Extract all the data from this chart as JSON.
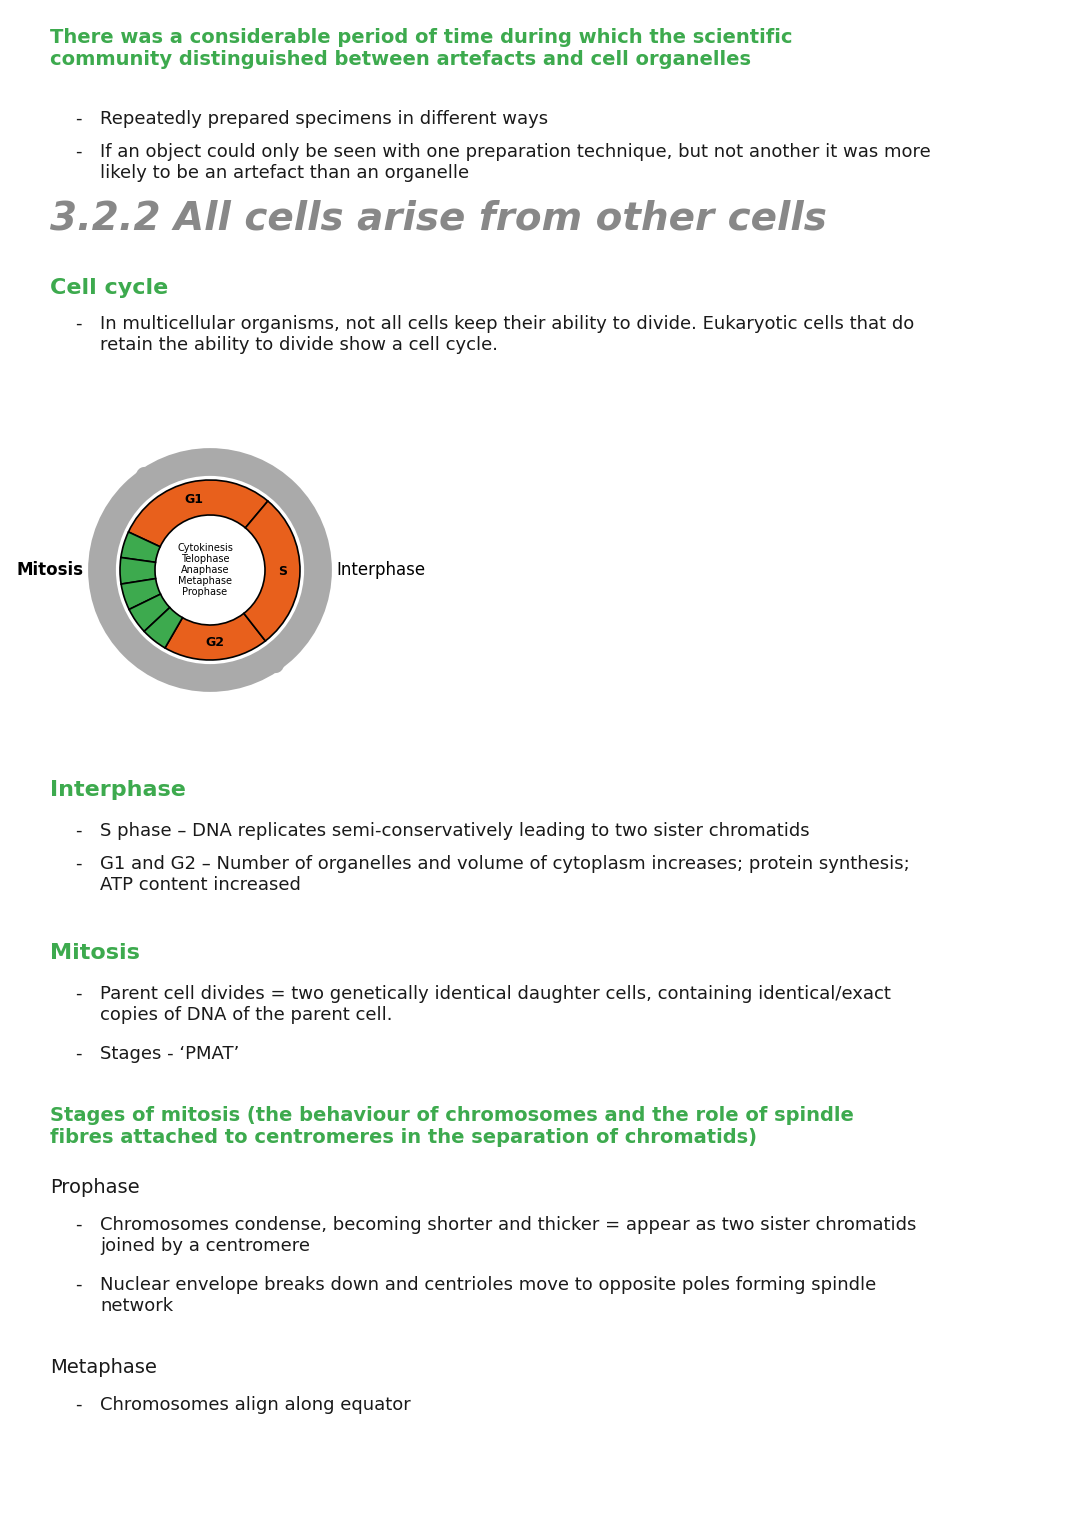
{
  "bg_color": "#ffffff",
  "green_heading_color": "#3daa4e",
  "black_text_color": "#1a1a1a",
  "orange_color": "#E8601C",
  "dark_green_slice": "#3daa4e",
  "gray_circle_color": "#AAAAAA",
  "section1_heading": "There was a considerable period of time during which the scientific\ncommunity distinguished between artefacts and cell organelles",
  "section1_bullets": [
    "Repeatedly prepared specimens in different ways",
    "If an object could only be seen with one preparation technique, but not another it was more\nlikely to be an artefact than an organelle"
  ],
  "section2_title": "3.2.2 All cells arise from other cells",
  "section3_heading": "Cell cycle",
  "section3_bullet": "In multicellular organisms, not all cells keep their ability to divide. Eukaryotic cells that do\nretain the ability to divide show a cell cycle.",
  "diagram_labels": {
    "G1": "G1",
    "G2": "G2",
    "S": "S",
    "mitosis_label": "Mitosis",
    "interphase_label": "Interphase",
    "inner_labels": [
      "Cytokinesis",
      "Telophase",
      "Anaphase",
      "Metaphase",
      "Prophase"
    ]
  },
  "section4_heading": "Interphase",
  "section4_bullets": [
    "S phase – DNA replicates semi-conservatively leading to two sister chromatids",
    "G1 and G2 – Number of organelles and volume of cytoplasm increases; protein synthesis;\nATP content increased"
  ],
  "section5_heading": "Mitosis",
  "section5_bullets": [
    "Parent cell divides = two genetically identical daughter cells, containing identical/exact\ncopies of DNA of the parent cell.",
    "Stages - ‘PMAT’"
  ],
  "section6_heading": "Stages of mitosis (the behaviour of chromosomes and the role of spindle\nfibres attached to centromeres in the separation of chromatids)",
  "section7_heading": "Prophase",
  "section7_bullets": [
    "Chromosomes condense, becoming shorter and thicker = appear as two sister chromatids\njoined by a centromere",
    "Nuclear envelope breaks down and centrioles move to opposite poles forming spindle\nnetwork"
  ],
  "section8_heading": "Metaphase",
  "section8_bullets": [
    "Chromosomes align along equator"
  ]
}
